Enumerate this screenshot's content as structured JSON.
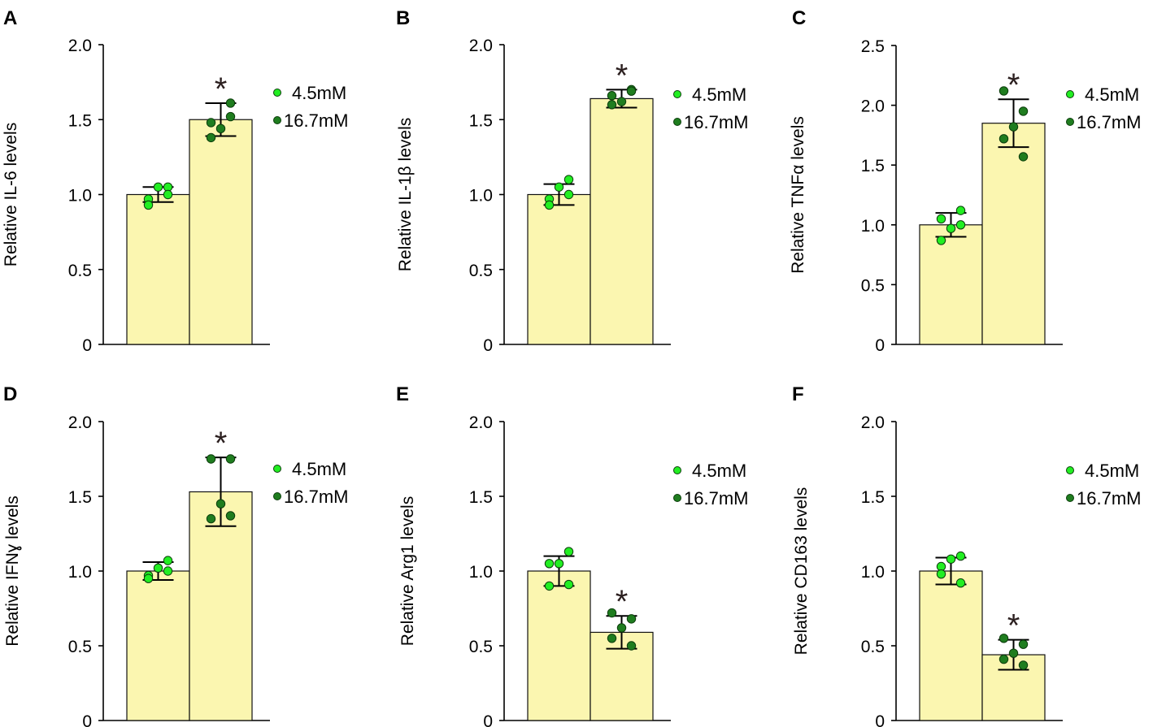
{
  "legend_colors": {
    "light": "#22ee22",
    "dark": "#1f7d1f",
    "bar_fill": "#fbf6b0",
    "bar_edge": "#111111"
  },
  "chart_data": [
    {
      "type": "bar",
      "panel": "A",
      "ylabel": "Relative IL-6 levels",
      "ylim": [
        0,
        2.0
      ],
      "yticks": [
        0,
        0.5,
        1.0,
        1.5,
        2.0
      ],
      "tick_labels": [
        "0",
        "0.5",
        "1.0",
        "1.5",
        "2.0"
      ],
      "categories": [
        "4.5mM",
        "16.7mM"
      ],
      "values": [
        1.0,
        1.5
      ],
      "errors": [
        0.05,
        0.11
      ],
      "points": [
        [
          0.97,
          1.05,
          1.05,
          0.93,
          1.0
        ],
        [
          1.48,
          1.61,
          1.44,
          1.38,
          1.52
        ]
      ],
      "significance": [
        "",
        "*"
      ],
      "legend": [
        "4.5mM",
        "16.7mM"
      ]
    },
    {
      "type": "bar",
      "panel": "B",
      "ylabel": "Relative IL-1β levels",
      "ylim": [
        0,
        2.0
      ],
      "yticks": [
        0,
        0.5,
        1.0,
        1.5,
        2.0
      ],
      "tick_labels": [
        "0",
        "0.5",
        "1.0",
        "1.5",
        "2.0"
      ],
      "categories": [
        "4.5mM",
        "16.7mM"
      ],
      "values": [
        1.0,
        1.64
      ],
      "errors": [
        0.07,
        0.06
      ],
      "points": [
        [
          0.97,
          1.1,
          1.05,
          0.93,
          1.0
        ],
        [
          1.6,
          1.7,
          1.62,
          1.66,
          1.69
        ]
      ],
      "significance": [
        "",
        "*"
      ],
      "legend": [
        "4.5mM",
        "16.7mM"
      ]
    },
    {
      "type": "bar",
      "panel": "C",
      "ylabel": "Relative TNFα levels",
      "ylim": [
        0,
        2.5
      ],
      "yticks": [
        0,
        0.5,
        1.0,
        1.5,
        2.0,
        2.5
      ],
      "tick_labels": [
        "0",
        "0.5",
        "1.0",
        "1.5",
        "2.0",
        "2.5"
      ],
      "categories": [
        "4.5mM",
        "16.7mM"
      ],
      "values": [
        1.0,
        1.85
      ],
      "errors": [
        0.1,
        0.2
      ],
      "points": [
        [
          1.05,
          1.12,
          0.97,
          0.87,
          1.0
        ],
        [
          2.12,
          1.95,
          1.82,
          1.72,
          1.57
        ]
      ],
      "significance": [
        "",
        "*"
      ],
      "legend": [
        "4.5mM",
        "16.7mM"
      ]
    },
    {
      "type": "bar",
      "panel": "D",
      "ylabel": "Relative IFNɣ levels",
      "ylim": [
        0,
        2.0
      ],
      "yticks": [
        0,
        0.5,
        1.0,
        1.5,
        2.0
      ],
      "tick_labels": [
        "0",
        "0.5",
        "1.0",
        "1.5",
        "2.0"
      ],
      "categories": [
        "4.5mM",
        "16.7mM"
      ],
      "values": [
        1.0,
        1.53
      ],
      "errors": [
        0.06,
        0.23
      ],
      "points": [
        [
          0.97,
          1.07,
          1.02,
          0.95,
          1.0
        ],
        [
          1.75,
          1.75,
          1.45,
          1.35,
          1.37
        ]
      ],
      "significance": [
        "",
        "*"
      ],
      "legend": [
        "4.5mM",
        "16.7mM"
      ]
    },
    {
      "type": "bar",
      "panel": "E",
      "ylabel": "Relative Arg1 levels",
      "ylim": [
        0,
        2.0
      ],
      "yticks": [
        0,
        0.5,
        1.0,
        1.5,
        2.0
      ],
      "tick_labels": [
        "0",
        "0.5",
        "1.0",
        "1.5",
        "2.0"
      ],
      "categories": [
        "4.5mM",
        "16.7mM"
      ],
      "values": [
        1.0,
        0.59
      ],
      "errors": [
        0.1,
        0.11
      ],
      "points": [
        [
          1.05,
          1.13,
          1.05,
          0.9,
          0.91
        ],
        [
          0.72,
          0.68,
          0.62,
          0.55,
          0.5
        ]
      ],
      "significance": [
        "",
        "*"
      ],
      "legend": [
        "4.5mM",
        "16.7mM"
      ]
    },
    {
      "type": "bar",
      "panel": "F",
      "ylabel": "Relative CD163 levels",
      "ylim": [
        0,
        2.0
      ],
      "yticks": [
        0,
        0.5,
        1.0,
        1.5,
        2.0
      ],
      "tick_labels": [
        "0",
        "0.5",
        "1.0",
        "1.5",
        "2.0"
      ],
      "categories": [
        "4.5mM",
        "16.7mM"
      ],
      "values": [
        1.0,
        0.44
      ],
      "errors": [
        0.09,
        0.1
      ],
      "points": [
        [
          1.03,
          1.1,
          1.08,
          0.98,
          0.92
        ],
        [
          0.55,
          0.51,
          0.45,
          0.41,
          0.37
        ]
      ],
      "significance": [
        "",
        "*"
      ],
      "legend": [
        "4.5mM",
        "16.7mM"
      ]
    }
  ]
}
